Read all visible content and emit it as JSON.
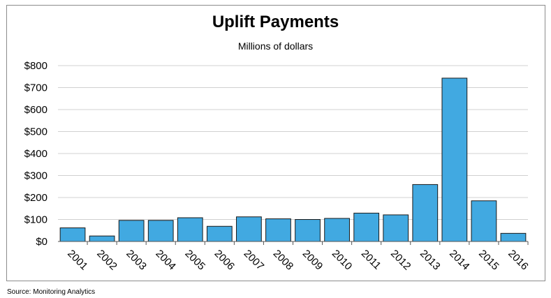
{
  "chart_data": {
    "type": "bar",
    "title": "Uplift Payments",
    "subtitle": "Millions of dollars",
    "categories": [
      "2001",
      "2002",
      "2003",
      "2004",
      "2005",
      "2006",
      "2007",
      "2008",
      "2009",
      "2010",
      "2011",
      "2012",
      "2013",
      "2014",
      "2015",
      "2016"
    ],
    "values": [
      62,
      25,
      96,
      96,
      108,
      69,
      112,
      103,
      100,
      105,
      129,
      121,
      259,
      743,
      185,
      37
    ],
    "yticks": [
      "$0",
      "$100",
      "$200",
      "$300",
      "$400",
      "$500",
      "$600",
      "$700",
      "$800"
    ],
    "ylim": [
      0,
      800
    ],
    "grid": true,
    "bar_color": "#41a9e1",
    "bar_edge_color": "#1a1a1a"
  },
  "source": "Source: Monitoring Analytics"
}
